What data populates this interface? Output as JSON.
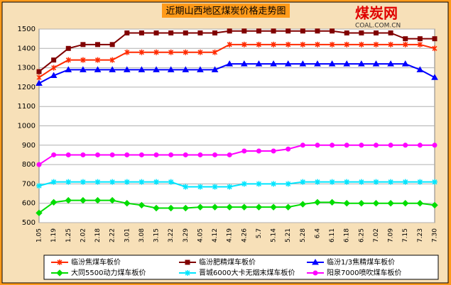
{
  "logo": {
    "name": "煤炭网",
    "site": "COAL.COM.CN"
  },
  "chart_data": {
    "type": "line",
    "title": "近期山西地区煤炭价格走势图",
    "categories": [
      "1.05",
      "1.19",
      "1.25",
      "2.02",
      "2.18",
      "2.22",
      "3.01",
      "3.08",
      "3.15",
      "3.22",
      "3.29",
      "4.05",
      "4.12",
      "4.19",
      "4.26",
      "5.7",
      "5.14",
      "5.21",
      "5.28",
      "6.4",
      "6.11",
      "6.18",
      "6.25",
      "7.02",
      "7.09",
      "7.15",
      "7.23",
      "7.30"
    ],
    "ylim": [
      500,
      1500
    ],
    "yticks": [
      500,
      600,
      700,
      800,
      900,
      1000,
      1100,
      1200,
      1300,
      1400,
      1500
    ],
    "grid": true,
    "series": [
      {
        "name": "临汾焦煤车板价",
        "color": "#ff2a00",
        "marker": "cross",
        "values": [
          1250,
          1300,
          1340,
          1340,
          1340,
          1340,
          1380,
          1380,
          1380,
          1380,
          1380,
          1380,
          1380,
          1420,
          1420,
          1420,
          1420,
          1420,
          1420,
          1420,
          1420,
          1420,
          1420,
          1420,
          1420,
          1420,
          1420,
          1400
        ]
      },
      {
        "name": "临汾肥精煤车板价",
        "color": "#800000",
        "marker": "square",
        "values": [
          1280,
          1340,
          1400,
          1420,
          1420,
          1420,
          1480,
          1480,
          1480,
          1480,
          1480,
          1480,
          1480,
          1490,
          1490,
          1490,
          1490,
          1490,
          1490,
          1490,
          1490,
          1480,
          1480,
          1480,
          1480,
          1450,
          1450,
          1450
        ]
      },
      {
        "name": "临汾1/3焦精煤车板价",
        "color": "#0000ff",
        "marker": "triangle",
        "values": [
          1220,
          1260,
          1290,
          1290,
          1290,
          1290,
          1290,
          1290,
          1290,
          1290,
          1290,
          1290,
          1290,
          1320,
          1320,
          1320,
          1320,
          1320,
          1320,
          1320,
          1320,
          1320,
          1320,
          1320,
          1320,
          1320,
          1290,
          1250
        ]
      },
      {
        "name": "大同5500动力煤车板价",
        "color": "#00dd00",
        "marker": "diamond",
        "values": [
          550,
          605,
          615,
          615,
          615,
          615,
          600,
          590,
          575,
          575,
          575,
          580,
          580,
          580,
          580,
          580,
          580,
          580,
          595,
          605,
          605,
          600,
          600,
          600,
          600,
          600,
          600,
          590
        ]
      },
      {
        "name": "晋城6000大卡无烟末煤车板价",
        "color": "#00e5ff",
        "marker": "star",
        "values": [
          690,
          710,
          710,
          710,
          710,
          710,
          710,
          710,
          710,
          710,
          685,
          685,
          685,
          685,
          700,
          700,
          700,
          700,
          710,
          710,
          710,
          710,
          710,
          710,
          710,
          710,
          710,
          710
        ]
      },
      {
        "name": "阳泉7000喷吹煤车板价",
        "color": "#ff00ff",
        "marker": "circle",
        "values": [
          800,
          850,
          850,
          850,
          850,
          850,
          850,
          850,
          850,
          850,
          850,
          850,
          850,
          850,
          870,
          870,
          870,
          880,
          900,
          900,
          900,
          900,
          900,
          900,
          900,
          900,
          900,
          900
        ]
      }
    ]
  }
}
